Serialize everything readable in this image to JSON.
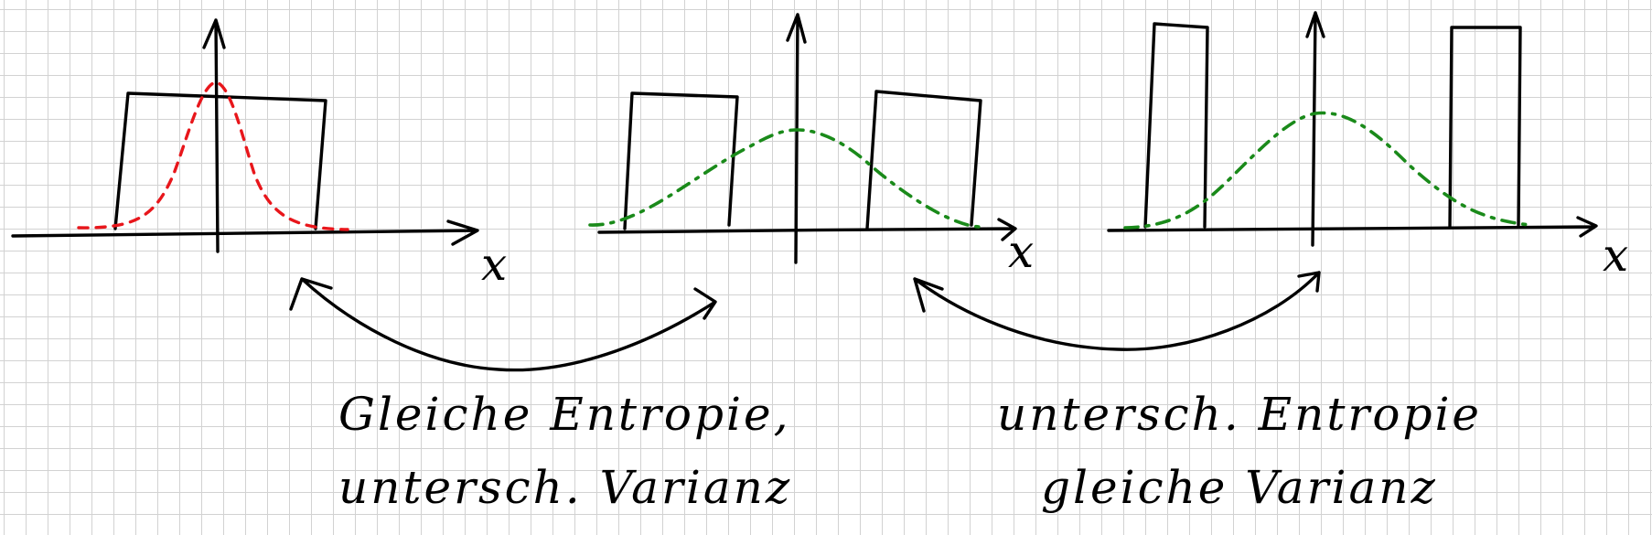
{
  "axis_label": "x",
  "caption_left": {
    "line1": "Gleiche Entropie,",
    "line2": "untersch. Varianz"
  },
  "caption_right": {
    "line1": "untersch. Entropie",
    "line2": "gleiche Varianz"
  },
  "colors": {
    "ink": "#000000",
    "narrow_curve": "#e8161b",
    "wide_curve": "#1a8a1a",
    "grid": "#d2d2d2"
  }
}
